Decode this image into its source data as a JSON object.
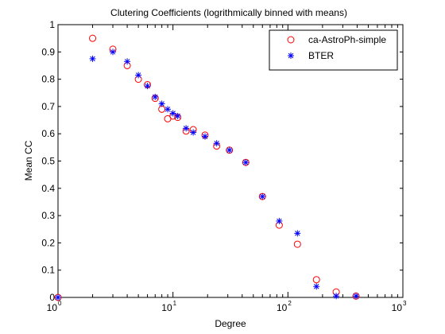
{
  "chart_data": {
    "type": "scatter",
    "title": "Clutering Coefficients (logrithmically binned with means)",
    "xlabel": "Degree",
    "ylabel": "Mean CC",
    "xscale": "log",
    "xlim": [
      1,
      1000
    ],
    "ylim": [
      0,
      1
    ],
    "grid": false,
    "legend_position": "top-right",
    "x_ticks": [
      {
        "base": "10",
        "exp": "0"
      },
      {
        "base": "10",
        "exp": "1"
      },
      {
        "base": "10",
        "exp": "2"
      },
      {
        "base": "10",
        "exp": "3"
      }
    ],
    "y_ticks": [
      "0",
      "0.1",
      "0.2",
      "0.3",
      "0.4",
      "0.5",
      "0.6",
      "0.7",
      "0.8",
      "0.9",
      "1"
    ],
    "y_tick_values": [
      0,
      0.1,
      0.2,
      0.3,
      0.4,
      0.5,
      0.6,
      0.7,
      0.8,
      0.9,
      1
    ],
    "series": [
      {
        "name": "ca-AstroPh-simple",
        "marker": "circle",
        "color": "#ff0000",
        "x": [
          1,
          2,
          3,
          4,
          5,
          6,
          7,
          8,
          9,
          10,
          11,
          13,
          15,
          19,
          24,
          31,
          43,
          60,
          84,
          121,
          177,
          263,
          391
        ],
        "y": [
          0.0,
          0.95,
          0.91,
          0.85,
          0.8,
          0.78,
          0.73,
          0.69,
          0.655,
          0.665,
          0.66,
          0.61,
          0.615,
          0.595,
          0.555,
          0.54,
          0.495,
          0.37,
          0.265,
          0.195,
          0.065,
          0.02,
          0.005
        ]
      },
      {
        "name": "BTER",
        "marker": "asterisk",
        "color": "#0000ff",
        "x": [
          1,
          2,
          3,
          4,
          5,
          6,
          7,
          8,
          9,
          10,
          11,
          13,
          15,
          19,
          24,
          31,
          43,
          60,
          84,
          121,
          177,
          263,
          391
        ],
        "y": [
          0.0,
          0.875,
          0.9,
          0.865,
          0.815,
          0.775,
          0.735,
          0.71,
          0.69,
          0.675,
          0.665,
          0.62,
          0.605,
          0.59,
          0.565,
          0.54,
          0.495,
          0.37,
          0.28,
          0.235,
          0.04,
          0.005,
          0.005
        ]
      }
    ]
  }
}
